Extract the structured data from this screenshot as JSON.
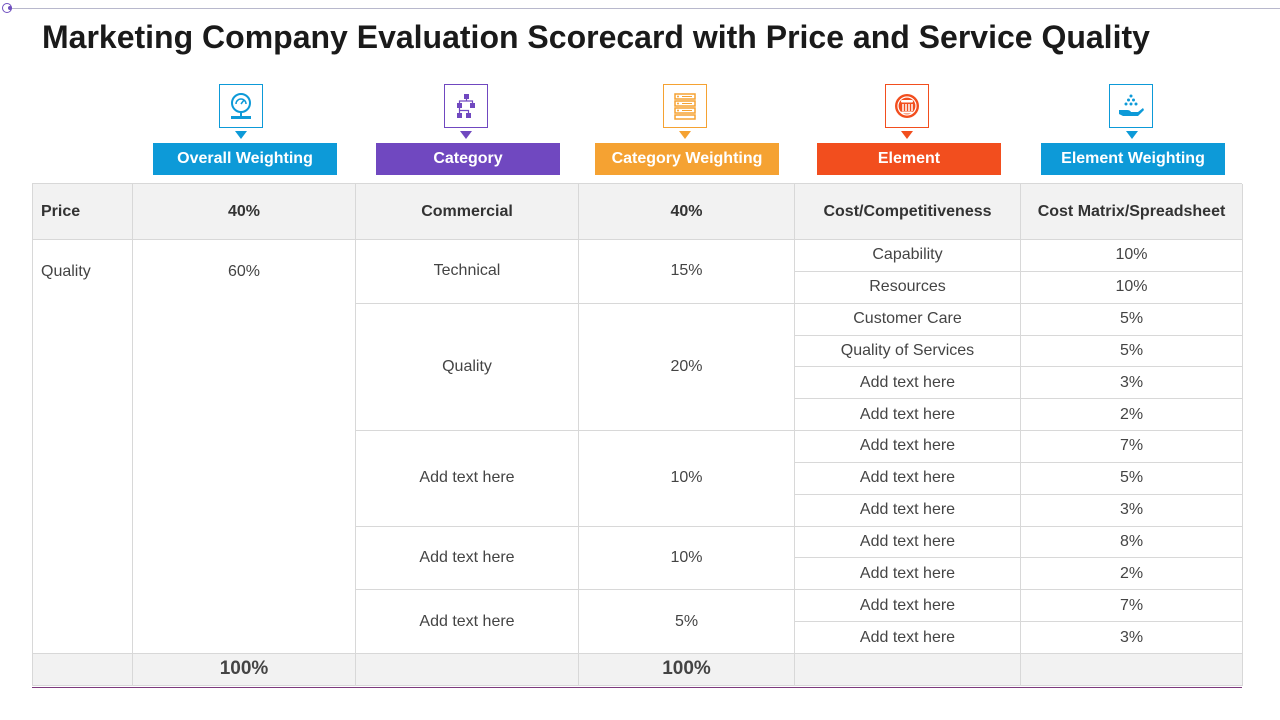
{
  "page": {
    "title": "Marketing Company Evaluation Scorecard with Price and Service Quality"
  },
  "columns": [
    {
      "label": "Overall Weighting",
      "color": "#0d9ad8",
      "icon": "gauge-dashboard-icon"
    },
    {
      "label": "Category",
      "color": "#7048c0",
      "icon": "org-hierarchy-icon"
    },
    {
      "label": "Category Weighting",
      "color": "#f5a232",
      "icon": "server-list-icon"
    },
    {
      "label": "Element",
      "color": "#f24e1e",
      "icon": "hamburger-icon"
    },
    {
      "label": "Element Weighting",
      "color": "#0d9ad8",
      "icon": "hand-with-dots-icon"
    }
  ],
  "table": {
    "header_row": {
      "criterion": "Price",
      "overall_weighting": "40%",
      "category": "Commercial",
      "category_weighting": "40%",
      "element": "Cost/Competitiveness",
      "element_weighting": "Cost Matrix/Spreadsheet"
    },
    "quality": {
      "criterion": "Quality",
      "overall_weighting": "60%"
    },
    "categories": [
      {
        "name": "Technical",
        "weighting": "15%"
      },
      {
        "name": "Quality",
        "weighting": "20%"
      },
      {
        "name": "Add text here",
        "weighting": "10%"
      },
      {
        "name": "Add text here",
        "weighting": "10%"
      },
      {
        "name": "Add text here",
        "weighting": "5%"
      }
    ],
    "elements": [
      {
        "name": "Capability",
        "weighting": "10%"
      },
      {
        "name": "Resources",
        "weighting": "10%"
      },
      {
        "name": "Customer Care",
        "weighting": "5%"
      },
      {
        "name": "Quality of Services",
        "weighting": "5%"
      },
      {
        "name": "Add text here",
        "weighting": "3%"
      },
      {
        "name": "Add text here",
        "weighting": "2%"
      },
      {
        "name": "Add text here",
        "weighting": "7%"
      },
      {
        "name": "Add text here",
        "weighting": "5%"
      },
      {
        "name": "Add text here",
        "weighting": "3%"
      },
      {
        "name": "Add text here",
        "weighting": "8%"
      },
      {
        "name": "Add text here",
        "weighting": "2%"
      },
      {
        "name": "Add text here",
        "weighting": "7%"
      },
      {
        "name": "Add text here",
        "weighting": "3%"
      }
    ],
    "totals": {
      "overall_weighting": "100%",
      "category_weighting": "100%"
    }
  }
}
